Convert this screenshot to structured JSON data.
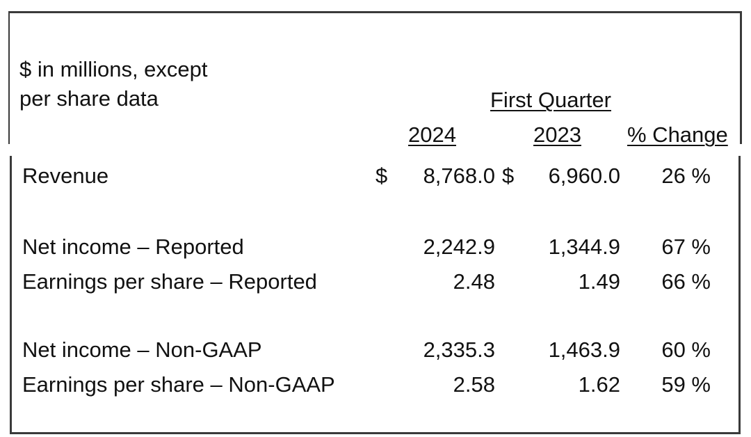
{
  "header": {
    "units_line1": "$ in millions, except",
    "units_line2": "per share data",
    "period": "First Quarter",
    "col_2024": "2024",
    "col_2023": "2023",
    "col_change": "% Change"
  },
  "currency_symbol": "$",
  "rows": [
    {
      "label": "Revenue",
      "v2024": "8,768.0",
      "v2023": "6,960.0",
      "change": "26 %"
    },
    {
      "label": "Net income – Reported",
      "v2024": "2,242.9",
      "v2023": "1,344.9",
      "change": "67 %"
    },
    {
      "label": "Earnings per share – Reported",
      "v2024": "2.48",
      "v2023": "1.49",
      "change": "66 %"
    },
    {
      "label": "Net income – Non-GAAP",
      "v2024": "2,335.3",
      "v2023": "1,463.9",
      "change": "60 %"
    },
    {
      "label": "Earnings per share – Non-GAAP",
      "v2024": "2.58",
      "v2023": "1.62",
      "change": "59 %"
    }
  ]
}
